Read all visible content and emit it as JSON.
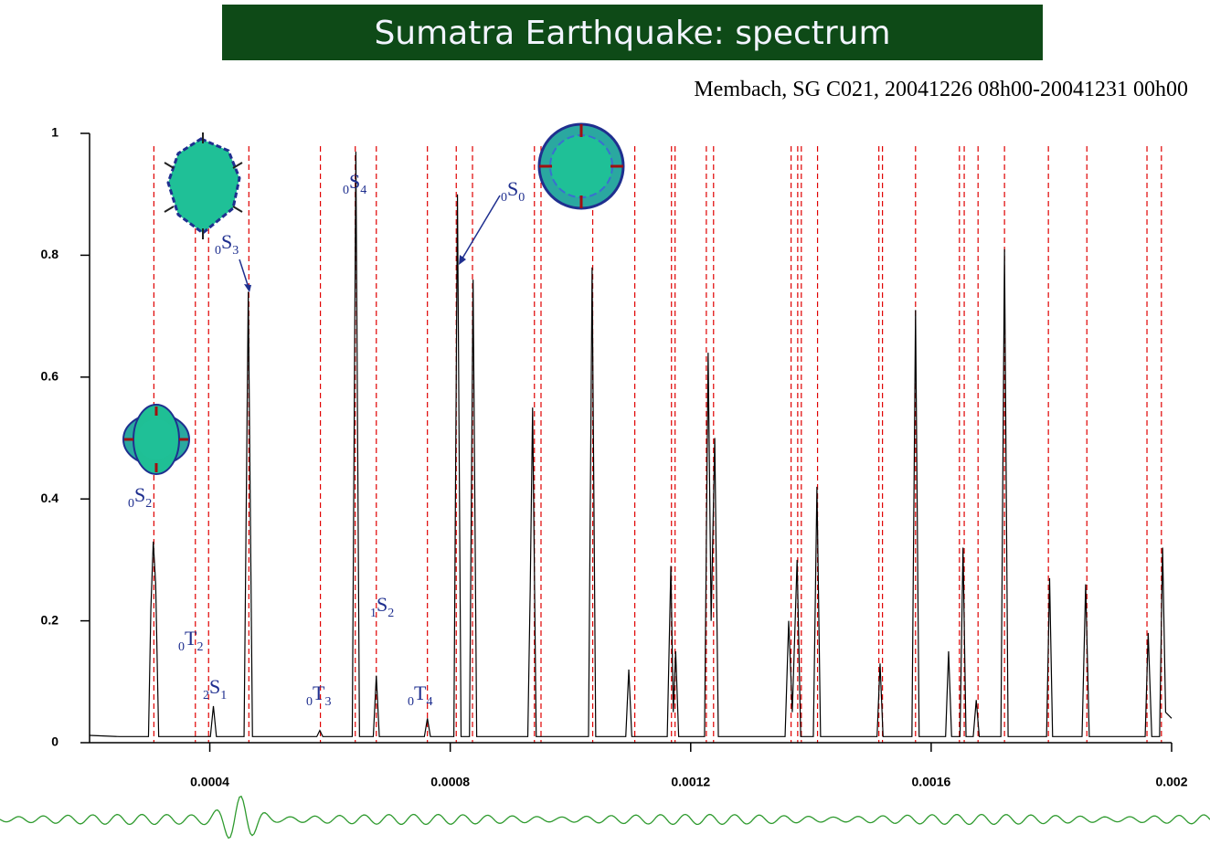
{
  "chart_data": {
    "type": "line",
    "title": "Sumatra Earthquake: spectrum",
    "subtitle": "Membach, SG C021, 20041226 08h00-20041231 00h00",
    "color": "#000000",
    "xlim": [
      0.0002,
      0.002
    ],
    "ylim": [
      0,
      1
    ],
    "xticks": [
      0.0004,
      0.0008,
      0.0012,
      0.0016,
      0.002
    ],
    "yticks": [
      0,
      0.2,
      0.4,
      0.6,
      0.8,
      1
    ],
    "x": [
      0.0002,
      0.00025,
      0.000298,
      0.000302,
      0.000306,
      0.00031,
      0.000315,
      0.000401,
      0.000406,
      0.000411,
      0.000457,
      0.000464,
      0.000471,
      0.000578,
      0.000583,
      0.000588,
      0.000637,
      0.000643,
      0.000649,
      0.000672,
      0.000677,
      0.000682,
      0.000757,
      0.000762,
      0.000767,
      0.000806,
      0.000812,
      0.000818,
      0.000832,
      0.000838,
      0.000844,
      0.000929,
      0.000933,
      0.000937,
      0.000943,
      0.00103,
      0.001036,
      0.001042,
      0.001092,
      0.001097,
      0.001102,
      0.001161,
      0.001167,
      0.001171,
      0.001175,
      0.00118,
      0.001223,
      0.001229,
      0.001234,
      0.00124,
      0.001246,
      0.001357,
      0.001363,
      0.001369,
      0.001377,
      0.001383,
      0.001404,
      0.00141,
      0.001416,
      0.00151,
      0.001515,
      0.00152,
      0.001568,
      0.001574,
      0.00158,
      0.001624,
      0.001629,
      0.001634,
      0.001648,
      0.001653,
      0.001658,
      0.00167,
      0.001675,
      0.00168,
      0.001716,
      0.001722,
      0.001728,
      0.001792,
      0.001797,
      0.001802,
      0.001851,
      0.001857,
      0.001863,
      0.001956,
      0.001961,
      0.001967,
      0.00198,
      0.001985,
      0.00199,
      0.002
    ],
    "values": [
      0.012,
      0.01,
      0.01,
      0.22,
      0.33,
      0.26,
      0.01,
      0.01,
      0.06,
      0.01,
      0.01,
      0.74,
      0.01,
      0.01,
      0.02,
      0.01,
      0.01,
      0.97,
      0.01,
      0.01,
      0.11,
      0.01,
      0.01,
      0.04,
      0.01,
      0.01,
      0.9,
      0.01,
      0.01,
      0.76,
      0.01,
      0.01,
      0.25,
      0.55,
      0.01,
      0.01,
      0.78,
      0.01,
      0.01,
      0.12,
      0.01,
      0.01,
      0.29,
      0.05,
      0.15,
      0.01,
      0.01,
      0.64,
      0.2,
      0.5,
      0.01,
      0.01,
      0.2,
      0.05,
      0.3,
      0.01,
      0.01,
      0.42,
      0.01,
      0.01,
      0.13,
      0.01,
      0.01,
      0.71,
      0.01,
      0.01,
      0.15,
      0.01,
      0.01,
      0.32,
      0.01,
      0.01,
      0.07,
      0.01,
      0.01,
      0.81,
      0.01,
      0.01,
      0.27,
      0.01,
      0.01,
      0.26,
      0.01,
      0.01,
      0.18,
      0.01,
      0.01,
      0.32,
      0.05,
      0.04
    ],
    "mode_lines": {
      "color": "#e00000",
      "values": [
        0.000307,
        0.000376,
        0.000398,
        0.000465,
        0.000584,
        0.000642,
        0.000677,
        0.000762,
        0.00081,
        0.000837,
        0.00094,
        0.000951,
        0.001037,
        0.001107,
        0.001168,
        0.001174,
        0.001226,
        0.001238,
        0.001367,
        0.001378,
        0.001384,
        0.001411,
        0.001513,
        0.001519,
        0.001574,
        0.001647,
        0.001655,
        0.001678,
        0.001722,
        0.001795,
        0.001859,
        0.001959,
        0.001983
      ]
    },
    "annotations": [
      {
        "pre": "0",
        "letter": "S",
        "post": "2"
      },
      {
        "pre": "0",
        "letter": "T",
        "post": "2"
      },
      {
        "pre": "2",
        "letter": "S",
        "post": "1"
      },
      {
        "pre": "0",
        "letter": "S",
        "post": "3"
      },
      {
        "pre": "0",
        "letter": "T",
        "post": "3"
      },
      {
        "pre": "0",
        "letter": "S",
        "post": "4"
      },
      {
        "pre": "1",
        "letter": "S",
        "post": "2"
      },
      {
        "pre": "0",
        "letter": "T",
        "post": "4"
      },
      {
        "pre": "0",
        "letter": "S",
        "post": "0"
      }
    ]
  }
}
